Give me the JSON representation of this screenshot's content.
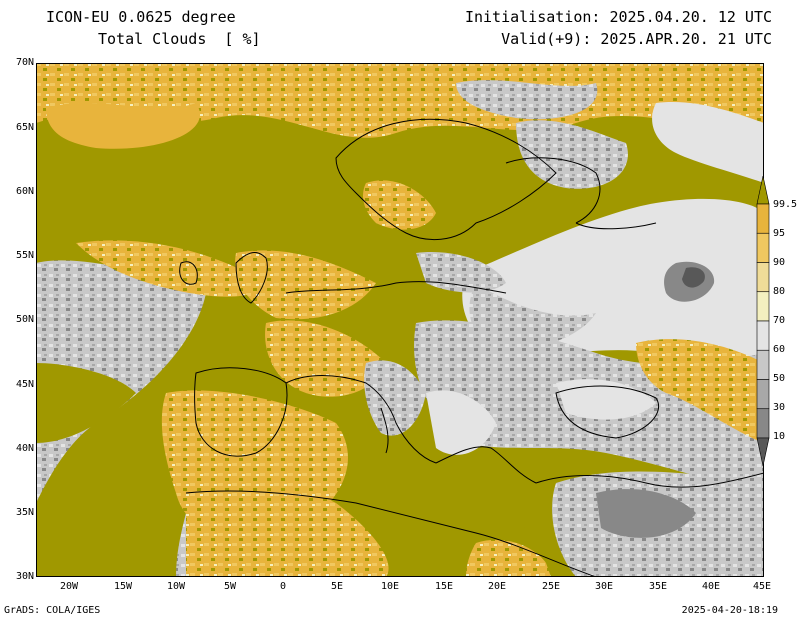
{
  "header": {
    "model": "ICON-EU 0.0625 degree",
    "parameter": "Total Clouds  [ %]",
    "initialisation": "Initialisation: 2025.04.20. 12 UTC",
    "valid": "Valid(+9): 2025.APR.20. 21 UTC"
  },
  "map": {
    "lat_labels": [
      "70N",
      "65N",
      "60N",
      "55N",
      "50N",
      "45N",
      "40N",
      "35N",
      "30N"
    ],
    "lon_labels": [
      "20W",
      "15W",
      "10W",
      "5W",
      "0",
      "5E",
      "10E",
      "15E",
      "20E",
      "25E",
      "30E",
      "35E",
      "40E",
      "45E"
    ],
    "lat_range": [
      30,
      70
    ],
    "lon_range": [
      -23,
      45
    ]
  },
  "legend": {
    "levels": [
      "99.5",
      "95",
      "90",
      "80",
      "70",
      "60",
      "50",
      "30",
      "10"
    ],
    "colors": [
      "#a09800",
      "#e8b43c",
      "#f0c860",
      "#f0dc98",
      "#f4f0c0",
      "#e4e4e4",
      "#c8c8c8",
      "#a8a8a8",
      "#888888",
      "#585858"
    ]
  },
  "footer": {
    "credit": "GrADS: COLA/IGES",
    "timestamp": "2025-04-20-18:19"
  }
}
